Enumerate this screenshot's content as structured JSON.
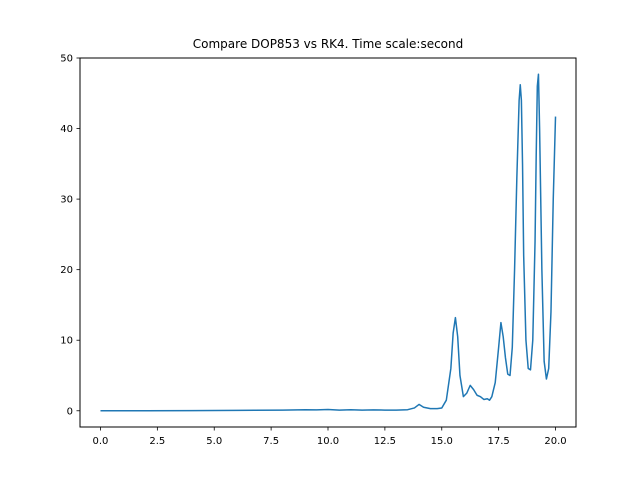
{
  "chart_data": {
    "type": "line",
    "title": "Compare DOP853 vs RK4. Time scale:second",
    "xlabel": "",
    "ylabel": "",
    "xlim": [
      -0.9,
      20.9
    ],
    "ylim": [
      -2.3,
      50
    ],
    "x_ticks": [
      0.0,
      2.5,
      5.0,
      7.5,
      10.0,
      12.5,
      15.0,
      17.5,
      20.0
    ],
    "x_tick_labels": [
      "0.0",
      "2.5",
      "5.0",
      "7.5",
      "10.0",
      "12.5",
      "15.0",
      "17.5",
      "20.0"
    ],
    "y_ticks": [
      0,
      10,
      20,
      30,
      40,
      50
    ],
    "y_tick_labels": [
      "0",
      "10",
      "20",
      "30",
      "40",
      "50"
    ],
    "grid": false,
    "series": [
      {
        "color": "#1f77b4",
        "x": [
          0.0,
          2.0,
          4.0,
          6.0,
          8.0,
          9.0,
          9.5,
          10.0,
          10.5,
          11.0,
          11.5,
          12.0,
          12.5,
          13.0,
          13.5,
          13.8,
          14.0,
          14.2,
          14.5,
          14.8,
          15.0,
          15.2,
          15.4,
          15.5,
          15.6,
          15.7,
          15.8,
          15.95,
          16.1,
          16.25,
          16.4,
          16.55,
          16.7,
          16.85,
          17.0,
          17.1,
          17.2,
          17.35,
          17.5,
          17.6,
          17.7,
          17.8,
          17.9,
          18.0,
          18.1,
          18.2,
          18.3,
          18.4,
          18.45,
          18.5,
          18.55,
          18.6,
          18.7,
          18.8,
          18.9,
          19.0,
          19.1,
          19.15,
          19.2,
          19.25,
          19.3,
          19.4,
          19.5,
          19.6,
          19.7,
          19.8,
          19.9,
          20.0
        ],
        "y": [
          0.0,
          0.0,
          0.02,
          0.05,
          0.1,
          0.15,
          0.12,
          0.18,
          0.1,
          0.15,
          0.1,
          0.12,
          0.1,
          0.1,
          0.15,
          0.4,
          0.9,
          0.5,
          0.3,
          0.3,
          0.4,
          1.5,
          6.0,
          11.0,
          13.2,
          10.5,
          5.0,
          2.0,
          2.5,
          3.6,
          3.0,
          2.2,
          2.0,
          1.6,
          1.7,
          1.5,
          2.0,
          4.0,
          9.0,
          12.5,
          10.5,
          7.5,
          5.2,
          5.0,
          9.0,
          20.0,
          33.0,
          44.0,
          46.2,
          44.0,
          35.0,
          22.0,
          10.0,
          6.0,
          5.8,
          10.0,
          24.0,
          36.0,
          46.0,
          47.7,
          40.0,
          20.0,
          7.0,
          4.5,
          6.0,
          14.0,
          30.0,
          41.7
        ]
      }
    ]
  }
}
